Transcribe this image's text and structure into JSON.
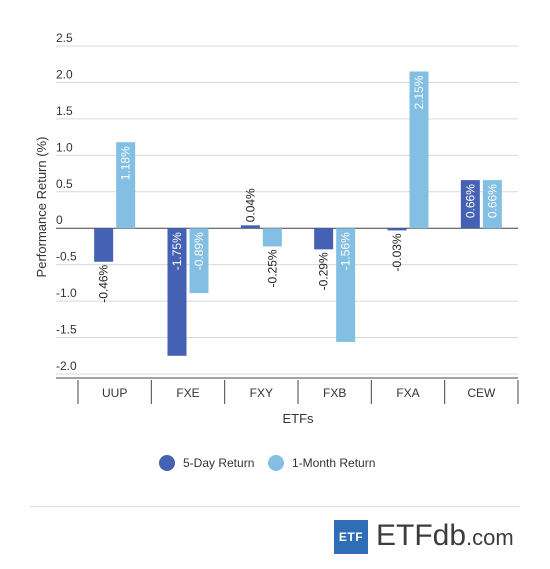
{
  "chart_data": {
    "type": "bar",
    "ylabel": "Performance Return (%)",
    "xlabel": "ETFs",
    "categories": [
      "UUP",
      "FXE",
      "FXY",
      "FXB",
      "FXA",
      "CEW"
    ],
    "series": [
      {
        "name": "5-Day Return",
        "color": "#4461b3",
        "values": [
          -0.46,
          -1.75,
          0.04,
          -0.29,
          -0.03,
          0.66
        ],
        "labels": [
          "-0.46%",
          "-1.75%",
          "0.04%",
          "-0.29%",
          "-0.03%",
          "0.66%"
        ]
      },
      {
        "name": "1-Month Return",
        "color": "#82bfe3",
        "values": [
          1.18,
          -0.89,
          -0.25,
          -1.56,
          2.15,
          0.66
        ],
        "labels": [
          "1.18%",
          "-0.89%",
          "-0.25%",
          "-1.56%",
          "2.15%",
          "0.66%"
        ]
      }
    ],
    "ylim": [
      -2.0,
      2.5
    ],
    "yticks": [
      "2.5",
      "2.0",
      "1.5",
      "1.0",
      "0.5",
      "0",
      "-0.5",
      "-1.0",
      "-1.5",
      "-2.0"
    ],
    "grid": true,
    "legend_position": "bottom"
  },
  "branding": {
    "badge": "ETF",
    "wordmark_main": "ETF",
    "wordmark_db": "db",
    "wordmark_suffix": ".com"
  }
}
